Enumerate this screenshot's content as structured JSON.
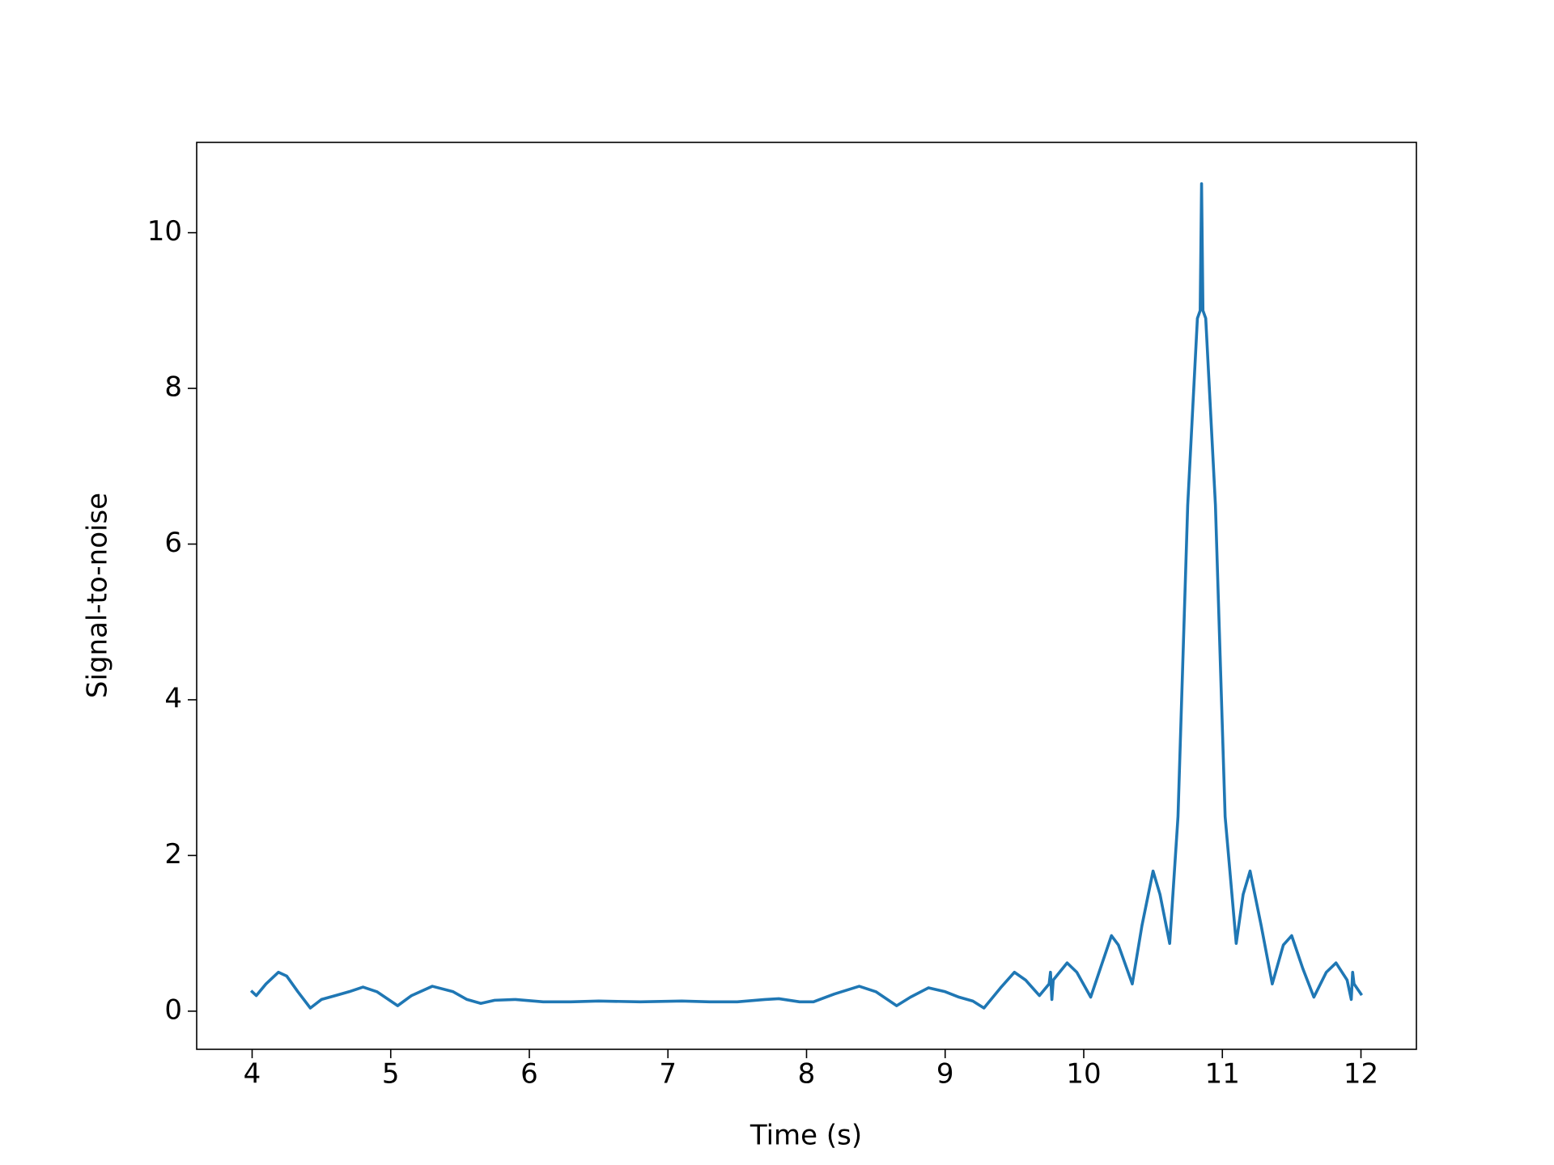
{
  "chart_data": {
    "type": "line",
    "xlabel": "Time (s)",
    "ylabel": "Signal-to-noise",
    "color": "#1f77b4",
    "x": [
      4.0,
      4.03,
      4.1,
      4.19,
      4.25,
      4.33,
      4.42,
      4.5,
      4.6,
      4.7,
      4.8,
      4.9,
      5.05,
      5.15,
      5.3,
      5.45,
      5.55,
      5.65,
      5.75,
      5.9,
      6.1,
      6.3,
      6.5,
      6.8,
      7.1,
      7.3,
      7.5,
      7.7,
      7.8,
      7.95,
      8.05,
      8.2,
      8.38,
      8.5,
      8.65,
      8.75,
      8.88,
      9.0,
      9.1,
      9.2,
      9.28,
      9.4,
      9.5,
      9.58,
      9.68,
      9.75,
      9.76,
      9.77,
      9.78,
      9.88,
      9.95,
      10.05,
      10.12,
      10.2,
      10.25,
      10.35,
      10.42,
      10.5,
      10.55,
      10.62,
      10.68,
      10.75,
      10.82,
      10.84,
      10.85,
      10.86,
      10.88,
      10.95,
      11.02,
      11.1,
      11.15,
      11.2,
      11.28,
      11.36,
      11.44,
      11.5,
      11.58,
      11.66,
      11.75,
      11.82,
      11.9,
      11.93,
      11.94,
      11.95,
      12.0
    ],
    "values": [
      0.25,
      0.2,
      0.35,
      0.5,
      0.45,
      0.25,
      0.04,
      0.15,
      0.2,
      0.25,
      0.31,
      0.25,
      0.07,
      0.2,
      0.32,
      0.25,
      0.15,
      0.1,
      0.14,
      0.15,
      0.12,
      0.12,
      0.13,
      0.12,
      0.13,
      0.12,
      0.12,
      0.15,
      0.16,
      0.12,
      0.12,
      0.22,
      0.32,
      0.25,
      0.07,
      0.18,
      0.3,
      0.25,
      0.18,
      0.13,
      0.04,
      0.3,
      0.5,
      0.4,
      0.2,
      0.35,
      0.5,
      0.15,
      0.4,
      0.62,
      0.5,
      0.18,
      0.55,
      0.97,
      0.85,
      0.35,
      1.1,
      1.8,
      1.5,
      0.87,
      2.5,
      6.5,
      8.9,
      9.0,
      10.63,
      9.0,
      8.9,
      6.5,
      2.5,
      0.87,
      1.5,
      1.8,
      1.1,
      0.35,
      0.85,
      0.97,
      0.55,
      0.18,
      0.5,
      0.62,
      0.4,
      0.15,
      0.5,
      0.35,
      0.22
    ],
    "xlim": [
      3.6,
      12.4
    ],
    "ylim": [
      -0.49,
      11.16
    ],
    "xticks": [
      4,
      5,
      6,
      7,
      8,
      9,
      10,
      11,
      12
    ],
    "yticks": [
      0,
      2,
      4,
      6,
      8,
      10
    ]
  }
}
